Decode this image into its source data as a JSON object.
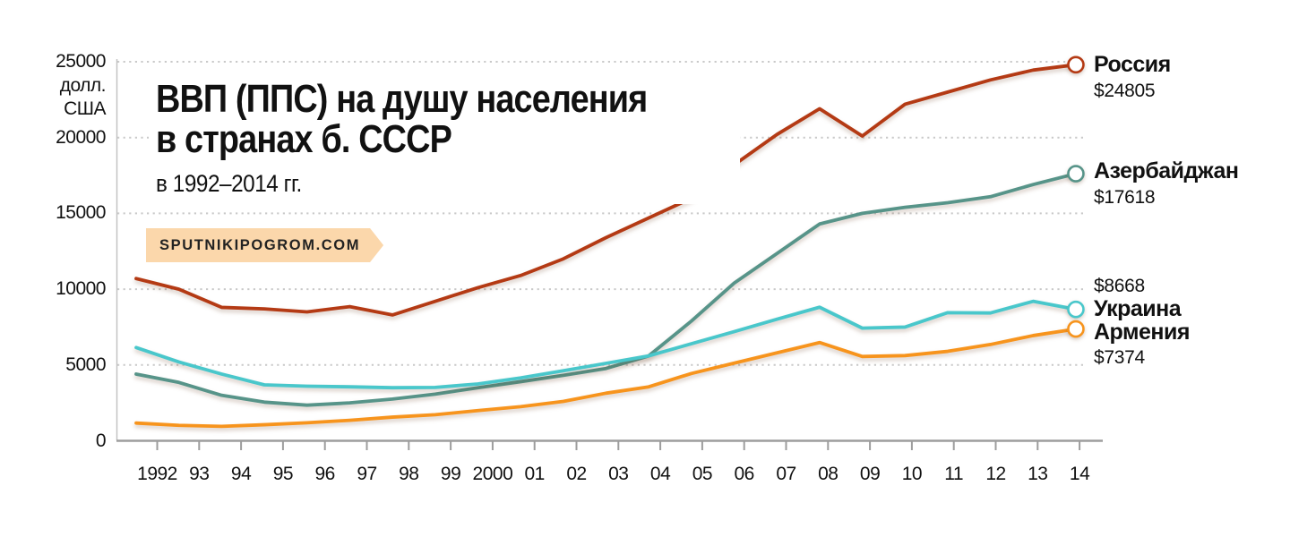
{
  "title": {
    "line1": "ВВП (ППС) на душу населения",
    "line2": "в странах б. СССР",
    "subtitle": "в 1992–2014 гг."
  },
  "watermark": "SPUTNIKIPOGROM.COM",
  "colors": {
    "badge_bg": "#fbd7ab",
    "grid": "#c9c9c9",
    "text": "#111111"
  },
  "y_axis": {
    "unit_line1": "долл.",
    "unit_line2": "США",
    "ticks": [
      25000,
      20000,
      15000,
      10000,
      5000,
      0
    ]
  },
  "x_axis": {
    "labels": [
      "1992",
      "93",
      "94",
      "95",
      "96",
      "97",
      "98",
      "99",
      "2000",
      "01",
      "02",
      "03",
      "04",
      "05",
      "06",
      "07",
      "08",
      "09",
      "10",
      "11",
      "12",
      "13",
      "14"
    ]
  },
  "chart_data": {
    "type": "line",
    "title": "ВВП (ППС) на душу населения в странах б. СССР в 1992–2014 гг.",
    "ylabel": "долл. США",
    "ylim": [
      0,
      25000
    ],
    "grid": "horizontal-dotted",
    "legend_position": "right-end-labels",
    "x": [
      1992,
      1993,
      1994,
      1995,
      1996,
      1997,
      1998,
      1999,
      2000,
      2001,
      2002,
      2003,
      2004,
      2005,
      2006,
      2007,
      2008,
      2009,
      2010,
      2011,
      2012,
      2013,
      2014
    ],
    "series": [
      {
        "name": "Россия",
        "end_label": "$24805",
        "end_value": 24805,
        "color": "#b43a14",
        "values": [
          10700,
          10000,
          8800,
          8700,
          8500,
          8850,
          8300,
          9200,
          10100,
          10900,
          12000,
          13400,
          14700,
          16000,
          18200,
          20200,
          21900,
          20100,
          22200,
          23000,
          23800,
          24450,
          24805
        ]
      },
      {
        "name": "Азербайджан",
        "end_label": "$17618",
        "end_value": 17618,
        "color": "#579489",
        "values": [
          4400,
          3850,
          3000,
          2550,
          2350,
          2500,
          2750,
          3080,
          3500,
          3900,
          4320,
          4770,
          5600,
          7900,
          10400,
          12350,
          14300,
          15000,
          15400,
          15700,
          16100,
          16900,
          17618
        ]
      },
      {
        "name": "Украина",
        "end_label": "$8668",
        "end_value": 8668,
        "color": "#49c7cb",
        "values": [
          6150,
          5200,
          4400,
          3690,
          3600,
          3560,
          3500,
          3520,
          3750,
          4150,
          4620,
          5110,
          5600,
          6400,
          7200,
          8020,
          8810,
          7430,
          7500,
          8450,
          8430,
          9200,
          8668
        ]
      },
      {
        "name": "Армения",
        "end_label": "$7374",
        "end_value": 7374,
        "color": "#f7941d",
        "values": [
          1170,
          1020,
          950,
          1060,
          1190,
          1350,
          1560,
          1720,
          1990,
          2250,
          2600,
          3140,
          3560,
          4440,
          5120,
          5800,
          6480,
          5560,
          5620,
          5900,
          6350,
          6940,
          7374
        ]
      }
    ]
  }
}
